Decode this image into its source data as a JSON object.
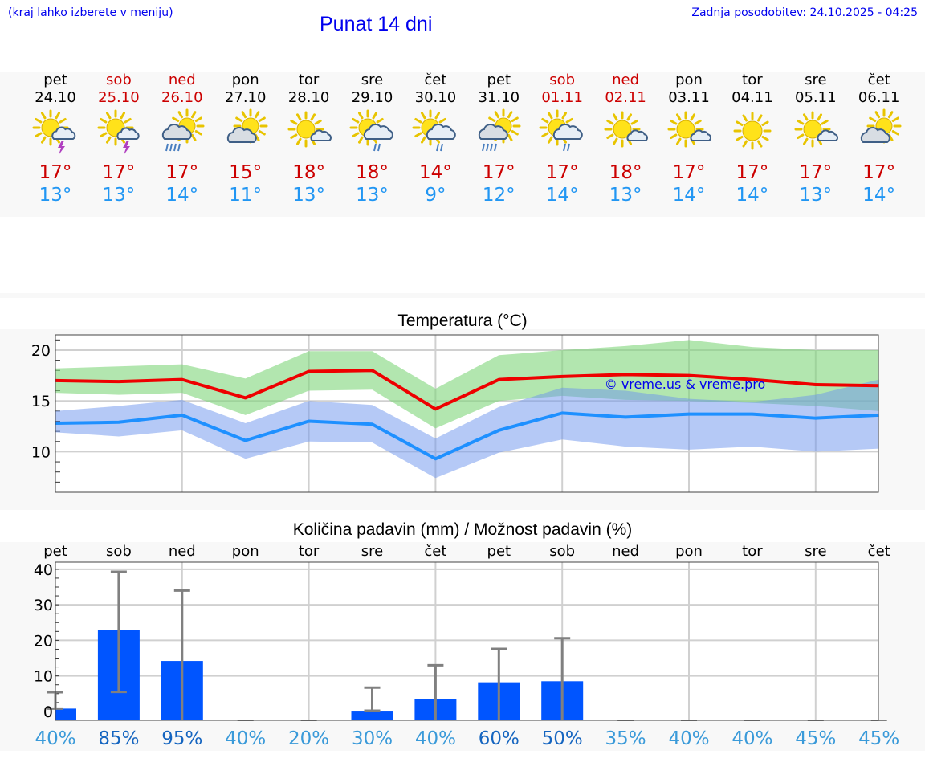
{
  "header": {
    "menu_hint": "(kraj lahko izberete v meniju)",
    "title": "Punat 14 dni",
    "updated": "Zadnja posodobitev: 24.10.2025 - 04:25"
  },
  "colors": {
    "max": "#cc0000",
    "min": "#2196f3",
    "weekend": "#cc0000",
    "bar": "#0055ff",
    "link": "#0000ee"
  },
  "days": [
    {
      "name": "pet",
      "date": "24.10",
      "weekend": false,
      "icon": "sun-cloud-storm-icon",
      "tmax": "17°",
      "tmin": "13°",
      "prob": "40%"
    },
    {
      "name": "sob",
      "date": "25.10",
      "weekend": true,
      "icon": "sun-storm-icon",
      "tmax": "17°",
      "tmin": "13°",
      "prob": "85%"
    },
    {
      "name": "ned",
      "date": "26.10",
      "weekend": true,
      "icon": "sun-cloud-heavy-rain-icon",
      "tmax": "17°",
      "tmin": "14°",
      "prob": "95%"
    },
    {
      "name": "pon",
      "date": "27.10",
      "weekend": false,
      "icon": "cloud-sun-icon",
      "tmax": "15°",
      "tmin": "11°",
      "prob": "40%"
    },
    {
      "name": "tor",
      "date": "28.10",
      "weekend": false,
      "icon": "sun-small-cloud-icon",
      "tmax": "18°",
      "tmin": "13°",
      "prob": "20%"
    },
    {
      "name": "sre",
      "date": "29.10",
      "weekend": false,
      "icon": "sun-cloud-rain-icon",
      "tmax": "18°",
      "tmin": "13°",
      "prob": "30%"
    },
    {
      "name": "čet",
      "date": "30.10",
      "weekend": false,
      "icon": "sun-cloud-rain-icon",
      "tmax": "14°",
      "tmin": "9°",
      "prob": "40%"
    },
    {
      "name": "pet",
      "date": "31.10",
      "weekend": false,
      "icon": "sun-cloud-heavy-rain-icon",
      "tmax": "17°",
      "tmin": "12°",
      "prob": "60%"
    },
    {
      "name": "sob",
      "date": "01.11",
      "weekend": true,
      "icon": "sun-cloud-rain-icon",
      "tmax": "17°",
      "tmin": "14°",
      "prob": "50%"
    },
    {
      "name": "ned",
      "date": "02.11",
      "weekend": true,
      "icon": "sun-small-cloud-icon",
      "tmax": "18°",
      "tmin": "13°",
      "prob": "35%"
    },
    {
      "name": "pon",
      "date": "03.11",
      "weekend": false,
      "icon": "sun-small-cloud-icon",
      "tmax": "17°",
      "tmin": "14°",
      "prob": "40%"
    },
    {
      "name": "tor",
      "date": "04.11",
      "weekend": false,
      "icon": "sun-icon",
      "tmax": "17°",
      "tmin": "14°",
      "prob": "40%"
    },
    {
      "name": "sre",
      "date": "05.11",
      "weekend": false,
      "icon": "sun-small-cloud-icon",
      "tmax": "17°",
      "tmin": "13°",
      "prob": "45%"
    },
    {
      "name": "čet",
      "date": "06.11",
      "weekend": false,
      "icon": "cloud-sun-icon",
      "tmax": "17°",
      "tmin": "14°",
      "prob": "45%"
    }
  ],
  "chart_data": [
    {
      "type": "line",
      "title": "Temperatura (°C)",
      "watermark": "© vreme.us & vreme.pro",
      "ylim": [
        6,
        21.5
      ],
      "yticks": [
        "10",
        "15",
        "20"
      ],
      "x": [
        0,
        1,
        2,
        3,
        4,
        5,
        6,
        7,
        8,
        9,
        10,
        11,
        12,
        13
      ],
      "series": [
        {
          "name": "max",
          "values": [
            17.0,
            16.9,
            17.1,
            15.3,
            17.9,
            18.0,
            14.2,
            17.1,
            17.4,
            17.6,
            17.5,
            17.1,
            16.6,
            16.5
          ],
          "band_low": [
            15.8,
            15.6,
            15.8,
            13.6,
            16.0,
            16.1,
            12.3,
            15.0,
            15.5,
            15.1,
            15.0,
            14.8,
            14.5,
            14.0
          ],
          "band_high": [
            18.2,
            18.4,
            18.6,
            17.2,
            19.9,
            19.9,
            16.2,
            19.5,
            20.0,
            20.4,
            21.0,
            20.3,
            20.0,
            20.0
          ]
        },
        {
          "name": "min",
          "values": [
            12.8,
            12.9,
            13.6,
            11.1,
            13.0,
            12.7,
            9.3,
            12.1,
            13.8,
            13.4,
            13.7,
            13.7,
            13.3,
            13.6
          ],
          "band_low": [
            11.9,
            11.5,
            12.1,
            9.3,
            11.0,
            10.9,
            7.4,
            9.9,
            11.2,
            10.5,
            10.2,
            10.5,
            10.0,
            10.3
          ],
          "band_high": [
            14.0,
            14.5,
            15.1,
            12.8,
            15.0,
            14.6,
            11.3,
            14.4,
            16.3,
            16.0,
            15.2,
            14.9,
            15.6,
            17.1
          ]
        }
      ]
    },
    {
      "type": "bar",
      "title": "Količina padavin (mm) / Možnost padavin (%)",
      "categories": [
        "pet",
        "sob",
        "ned",
        "pon",
        "tor",
        "sre",
        "čet",
        "pet",
        "sob",
        "ned",
        "pon",
        "tor",
        "sre",
        "čet"
      ],
      "ylim": [
        -2.5,
        42
      ],
      "yticks": [
        "0",
        "10",
        "20",
        "30",
        "40"
      ],
      "values": [
        0.8,
        23.0,
        14.2,
        0,
        0,
        0.2,
        3.5,
        8.2,
        8.5,
        0,
        0,
        0,
        0,
        0
      ],
      "err_low": [
        0.8,
        5.5,
        0,
        0,
        0,
        0.2,
        0,
        0,
        0,
        0,
        0,
        0,
        0,
        0
      ],
      "err_high": [
        5.4,
        39.3,
        34.0,
        0.1,
        0.1,
        6.7,
        13.0,
        17.6,
        20.6,
        0.1,
        0.1,
        0.1,
        0.1,
        0.1
      ],
      "probability": [
        "40%",
        "85%",
        "95%",
        "40%",
        "20%",
        "30%",
        "40%",
        "60%",
        "50%",
        "35%",
        "40%",
        "40%",
        "45%",
        "45%"
      ]
    }
  ]
}
